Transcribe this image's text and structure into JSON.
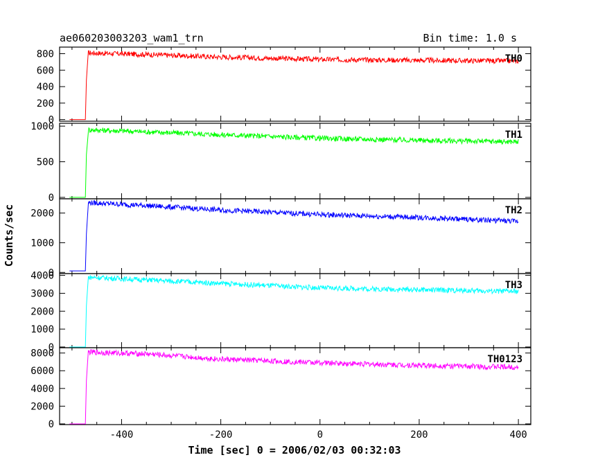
{
  "header": {
    "title": "ae060203003203_wam1_trn",
    "bin_time": "Bin time: 1.0 s"
  },
  "axes": {
    "xlabel": "Time [sec] 0 = 2006/02/03 00:32:03",
    "ylabel": "Counts/sec"
  },
  "chart_data": {
    "type": "line",
    "title": "ae060203003203_wam1_trn",
    "xlabel": "Time [sec] 0 = 2006/02/03 00:32:03",
    "ylabel": "Counts/sec",
    "xlim": [
      -525,
      425
    ],
    "xticks": [
      -400,
      -200,
      0,
      200,
      400
    ],
    "grid": false,
    "panels": [
      {
        "name": "TH0",
        "color": "#ff0000",
        "ylim": [
          -20,
          880
        ],
        "yticks": [
          0,
          200,
          400,
          600,
          800
        ],
        "series": [
          {
            "name": "TH0",
            "x": [
              -505,
              -473,
              -471,
              -467,
              -350,
              -200,
              0,
              200,
              400
            ],
            "y": [
              0,
              0,
              480,
              810,
              790,
              760,
              730,
              720,
              710
            ]
          }
        ]
      },
      {
        "name": "TH1",
        "color": "#00ff00",
        "ylim": [
          -20,
          1040
        ],
        "yticks": [
          0,
          500,
          1000
        ],
        "series": [
          {
            "name": "TH1",
            "x": [
              -505,
              -473,
              -471,
              -467,
              -350,
              -200,
              0,
              200,
              400
            ],
            "y": [
              0,
              0,
              600,
              950,
              920,
              880,
              830,
              800,
              780
            ]
          }
        ]
      },
      {
        "name": "TH2",
        "color": "#0000ff",
        "ylim": [
          -40,
          2480
        ],
        "yticks": [
          0,
          1000,
          2000
        ],
        "series": [
          {
            "name": "TH2",
            "x": [
              -505,
              -473,
              -471,
              -467,
              -350,
              -200,
              0,
              200,
              400
            ],
            "y": [
              50,
              50,
              1300,
              2350,
              2250,
              2100,
              1950,
              1850,
              1720
            ]
          }
        ]
      },
      {
        "name": "TH3",
        "color": "#00ffff",
        "ylim": [
          -40,
          4100
        ],
        "yticks": [
          0,
          1000,
          2000,
          3000,
          4000
        ],
        "series": [
          {
            "name": "TH3",
            "x": [
              -505,
              -473,
              -471,
              -467,
              -350,
              -200,
              0,
              200,
              400
            ],
            "y": [
              0,
              0,
              2300,
              3900,
              3750,
              3550,
              3300,
              3200,
              3100
            ]
          }
        ]
      },
      {
        "name": "TH0123",
        "color": "#ff00ff",
        "ylim": [
          -80,
          8600
        ],
        "yticks": [
          0,
          2000,
          4000,
          6000,
          8000
        ],
        "series": [
          {
            "name": "TH0123",
            "x": [
              -505,
              -473,
              -471,
              -467,
              -350,
              -200,
              0,
              200,
              400
            ],
            "y": [
              0,
              0,
              4900,
              8100,
              7900,
              7300,
              6900,
              6600,
              6400
            ]
          }
        ]
      }
    ]
  }
}
